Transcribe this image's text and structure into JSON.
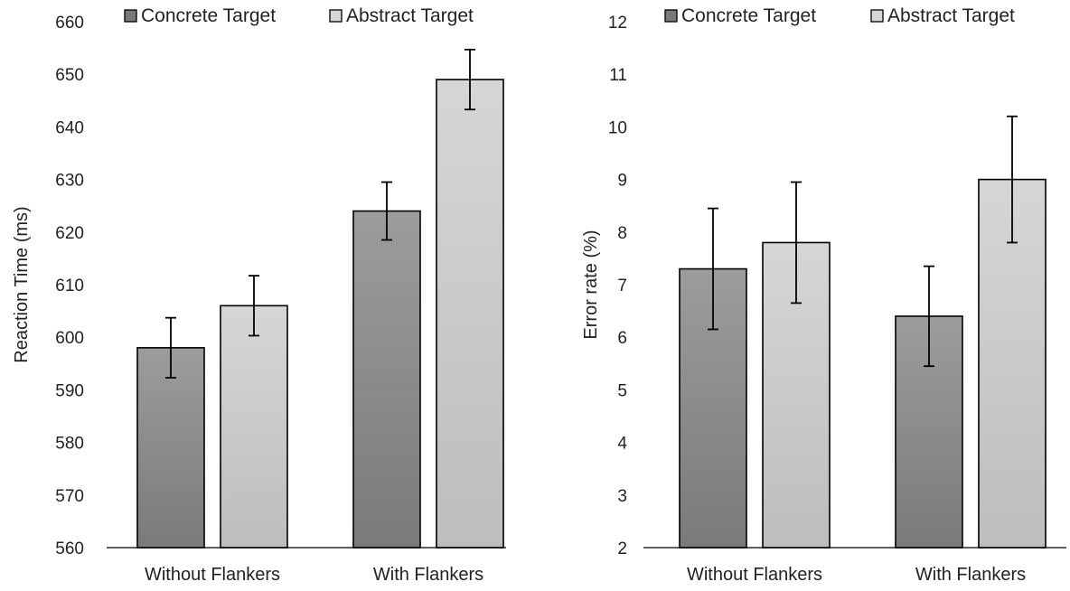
{
  "colors": {
    "concrete_top": "#9c9c9c",
    "concrete_bottom": "#7a7a7a",
    "abstract_top": "#d6d6d6",
    "abstract_bottom": "#bdbdbd",
    "bar_stroke": "#000000",
    "axis": "#000000"
  },
  "chart_data": [
    {
      "type": "bar",
      "title": "",
      "xlabel": "",
      "ylabel": "Reaction Time (ms)",
      "ylim": [
        560,
        660
      ],
      "yticks": [
        560,
        570,
        580,
        590,
        600,
        610,
        620,
        630,
        640,
        650,
        660
      ],
      "categories": [
        "Without Flankers",
        "With Flankers"
      ],
      "legend_position": "top",
      "grid": false,
      "series": [
        {
          "name": "Concrete Target",
          "values": [
            598,
            624
          ],
          "errors": [
            5.7,
            5.5
          ]
        },
        {
          "name": "Abstract Target",
          "values": [
            606,
            649
          ],
          "errors": [
            5.7,
            5.7
          ]
        }
      ]
    },
    {
      "type": "bar",
      "title": "",
      "xlabel": "",
      "ylabel": "Error rate (%)",
      "ylim": [
        2,
        12
      ],
      "yticks": [
        2,
        3,
        4,
        5,
        6,
        7,
        8,
        9,
        10,
        11,
        12
      ],
      "categories": [
        "Without Flankers",
        "With Flankers"
      ],
      "legend_position": "top",
      "grid": false,
      "series": [
        {
          "name": "Concrete Target",
          "values": [
            7.3,
            6.4
          ],
          "errors": [
            1.15,
            0.95
          ]
        },
        {
          "name": "Abstract Target",
          "values": [
            7.8,
            9.0
          ],
          "errors": [
            1.15,
            1.2
          ]
        }
      ]
    }
  ]
}
